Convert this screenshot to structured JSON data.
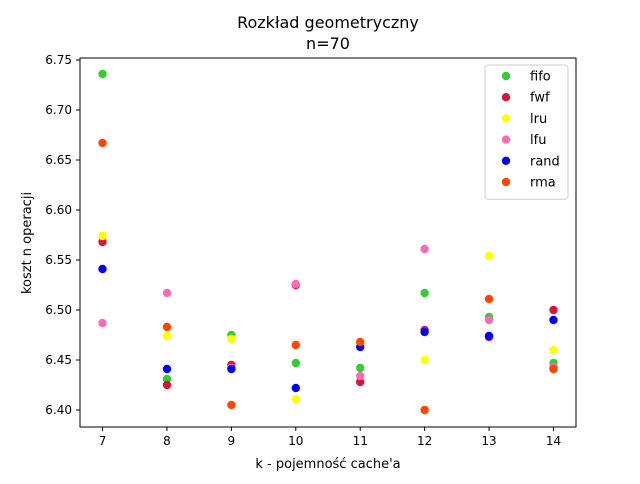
{
  "chart_data": {
    "type": "scatter",
    "title": "Rozkład geometryczny",
    "subtitle": "n=70",
    "xlabel": "k - pojemność cache'a",
    "ylabel": "koszt n operacji",
    "xlim": [
      6.65,
      14.35
    ],
    "ylim": [
      6.383,
      6.752
    ],
    "xticks": [
      7,
      8,
      9,
      10,
      11,
      12,
      13,
      14
    ],
    "yticks": [
      6.4,
      6.45,
      6.5,
      6.55,
      6.6,
      6.65,
      6.7,
      6.75
    ],
    "ytick_labels": [
      "6.40",
      "6.45",
      "6.50",
      "6.55",
      "6.60",
      "6.65",
      "6.70",
      "6.75"
    ],
    "grid": false,
    "legend": "top-right",
    "x": [
      7,
      8,
      9,
      10,
      11,
      12,
      13,
      14
    ],
    "series": [
      {
        "name": "fifo",
        "color": "#32cd32",
        "values": [
          6.736,
          6.431,
          6.475,
          6.447,
          6.442,
          6.517,
          6.493,
          6.447
        ]
      },
      {
        "name": "fwf",
        "color": "#dc143c",
        "values": [
          6.568,
          6.425,
          6.445,
          6.525,
          6.428,
          6.48,
          6.473,
          6.5
        ]
      },
      {
        "name": "lru",
        "color": "#ffff00",
        "values": [
          6.574,
          6.474,
          6.471,
          6.411,
          6.466,
          6.45,
          6.554,
          6.46
        ]
      },
      {
        "name": "lfu",
        "color": "#ff69b4",
        "values": [
          6.487,
          6.517,
          6.442,
          6.526,
          6.434,
          6.561,
          6.49,
          6.443
        ]
      },
      {
        "name": "rand",
        "color": "#0000ff",
        "values": [
          6.541,
          6.441,
          6.441,
          6.422,
          6.463,
          6.478,
          6.474,
          6.49
        ]
      },
      {
        "name": "rma",
        "color": "#ff4500",
        "values": [
          6.667,
          6.483,
          6.405,
          6.465,
          6.468,
          6.4,
          6.511,
          6.441
        ]
      }
    ]
  }
}
